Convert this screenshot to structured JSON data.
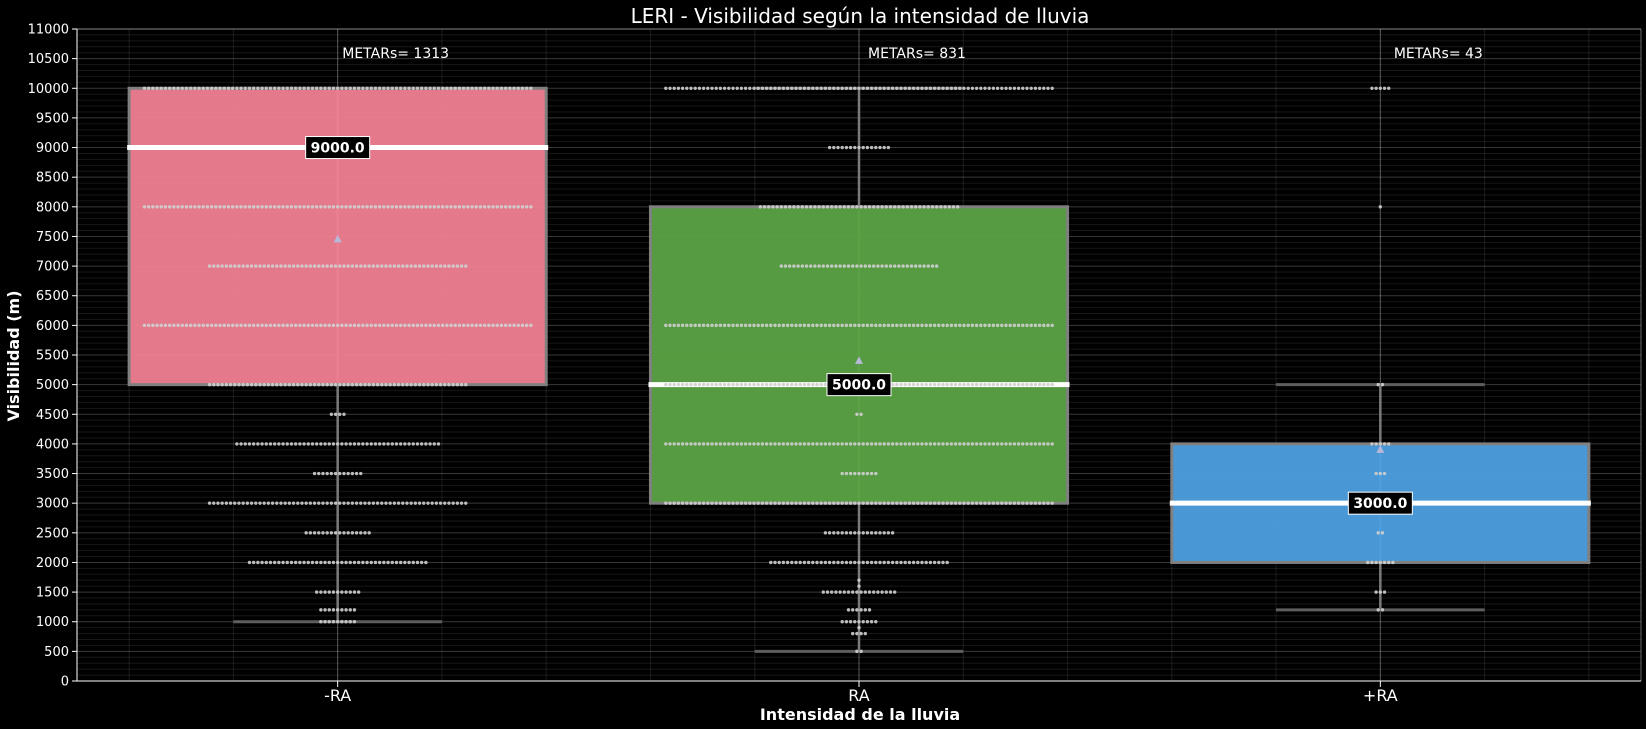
{
  "chart_data": {
    "type": "box",
    "title": "LERI - Visibilidad según la intensidad de lluvia",
    "xlabel": "Intensidad de la lluvia",
    "ylabel": "Visibilidad (m)",
    "ylim": [
      0,
      11000
    ],
    "yticks": [
      0,
      500,
      1000,
      1500,
      2000,
      2500,
      3000,
      3500,
      4000,
      4500,
      5000,
      5500,
      6000,
      6500,
      7000,
      7500,
      8000,
      8500,
      9000,
      9500,
      10000,
      10500,
      11000
    ],
    "grid": true,
    "count_prefix": "METARs= ",
    "categories": [
      "-RA",
      "RA",
      "+RA"
    ],
    "boxes": [
      {
        "category": "-RA",
        "color": "#f08094",
        "count": 1313,
        "whisker_low": 1000,
        "q1": 5000,
        "median": 9000,
        "q3": 10000,
        "whisker_high": 10000,
        "mean": 7450,
        "median_label": "9000.0",
        "points": [
          {
            "value": 10000,
            "n": 93
          },
          {
            "value": 8000,
            "n": 93
          },
          {
            "value": 7000,
            "n": 62
          },
          {
            "value": 6000,
            "n": 93
          },
          {
            "value": 5000,
            "n": 62
          },
          {
            "value": 4500,
            "n": 4
          },
          {
            "value": 4000,
            "n": 49
          },
          {
            "value": 3500,
            "n": 12
          },
          {
            "value": 3000,
            "n": 62
          },
          {
            "value": 2500,
            "n": 16
          },
          {
            "value": 2000,
            "n": 43
          },
          {
            "value": 1500,
            "n": 11
          },
          {
            "value": 1200,
            "n": 9
          },
          {
            "value": 1000,
            "n": 9
          }
        ]
      },
      {
        "category": "RA",
        "color": "#5ba245",
        "count": 831,
        "whisker_low": 500,
        "q1": 3000,
        "median": 5000,
        "q3": 8000,
        "whisker_high": 10000,
        "mean": 5400,
        "median_label": "5000.0",
        "points": [
          {
            "value": 10000,
            "n": 93
          },
          {
            "value": 9000,
            "n": 15
          },
          {
            "value": 8000,
            "n": 48
          },
          {
            "value": 7000,
            "n": 38
          },
          {
            "value": 6000,
            "n": 93
          },
          {
            "value": 5000,
            "n": 93
          },
          {
            "value": 4500,
            "n": 2
          },
          {
            "value": 4000,
            "n": 93
          },
          {
            "value": 3500,
            "n": 9
          },
          {
            "value": 3000,
            "n": 93
          },
          {
            "value": 2500,
            "n": 17
          },
          {
            "value": 2000,
            "n": 43
          },
          {
            "value": 1700,
            "n": 1
          },
          {
            "value": 1600,
            "n": 1
          },
          {
            "value": 1500,
            "n": 18
          },
          {
            "value": 1200,
            "n": 6
          },
          {
            "value": 1000,
            "n": 9
          },
          {
            "value": 900,
            "n": 1
          },
          {
            "value": 800,
            "n": 4
          },
          {
            "value": 500,
            "n": 2
          }
        ]
      },
      {
        "category": "+RA",
        "color": "#4d9fdf",
        "count": 43,
        "whisker_low": 1200,
        "q1": 2000,
        "median": 3000,
        "q3": 4000,
        "whisker_high": 5000,
        "mean": 3900,
        "median_label": "3000.0",
        "points": [
          {
            "value": 10000,
            "n": 5
          },
          {
            "value": 8000,
            "n": 1
          },
          {
            "value": 5000,
            "n": 2
          },
          {
            "value": 4000,
            "n": 5
          },
          {
            "value": 3500,
            "n": 3
          },
          {
            "value": 3000,
            "n": 7
          },
          {
            "value": 2500,
            "n": 2
          },
          {
            "value": 2000,
            "n": 7
          },
          {
            "value": 1500,
            "n": 3
          },
          {
            "value": 1200,
            "n": 2
          }
        ]
      }
    ]
  }
}
